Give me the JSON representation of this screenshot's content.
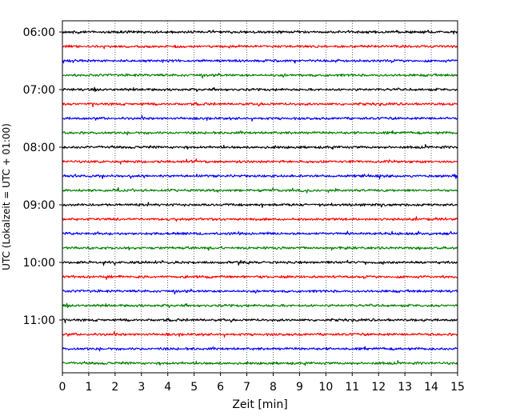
{
  "chart_data": {
    "type": "line",
    "xlabel": "Zeit  [min]",
    "ylabel": "UTC (Lokalzeit = UTC + 01:00)",
    "xlim": [
      0,
      15
    ],
    "x_ticks": [
      "0",
      "1",
      "2",
      "3",
      "4",
      "5",
      "6",
      "7",
      "8",
      "9",
      "10",
      "11",
      "12",
      "13",
      "14",
      "15"
    ],
    "y_ticks": [
      "06:00",
      "07:00",
      "08:00",
      "09:00",
      "10:00",
      "11:00"
    ],
    "grid": "vertical-dotted",
    "trace_colors": [
      "#000000",
      "#ff0000",
      "#0000ff",
      "#008000"
    ],
    "traces": [
      {
        "start": "06:00",
        "color": "#000000"
      },
      {
        "start": "06:15",
        "color": "#ff0000"
      },
      {
        "start": "06:30",
        "color": "#0000ff"
      },
      {
        "start": "06:45",
        "color": "#008000"
      },
      {
        "start": "07:00",
        "color": "#000000"
      },
      {
        "start": "07:15",
        "color": "#ff0000"
      },
      {
        "start": "07:30",
        "color": "#0000ff"
      },
      {
        "start": "07:45",
        "color": "#008000"
      },
      {
        "start": "08:00",
        "color": "#000000"
      },
      {
        "start": "08:15",
        "color": "#ff0000"
      },
      {
        "start": "08:30",
        "color": "#0000ff"
      },
      {
        "start": "08:45",
        "color": "#008000"
      },
      {
        "start": "09:00",
        "color": "#000000"
      },
      {
        "start": "09:15",
        "color": "#ff0000"
      },
      {
        "start": "09:30",
        "color": "#0000ff"
      },
      {
        "start": "09:45",
        "color": "#008000"
      },
      {
        "start": "10:00",
        "color": "#000000"
      },
      {
        "start": "10:15",
        "color": "#ff0000"
      },
      {
        "start": "10:30",
        "color": "#0000ff"
      },
      {
        "start": "10:45",
        "color": "#008000"
      },
      {
        "start": "11:00",
        "color": "#000000"
      },
      {
        "start": "11:15",
        "color": "#ff0000"
      },
      {
        "start": "11:30",
        "color": "#0000ff"
      },
      {
        "start": "11:45",
        "color": "#008000"
      }
    ]
  }
}
